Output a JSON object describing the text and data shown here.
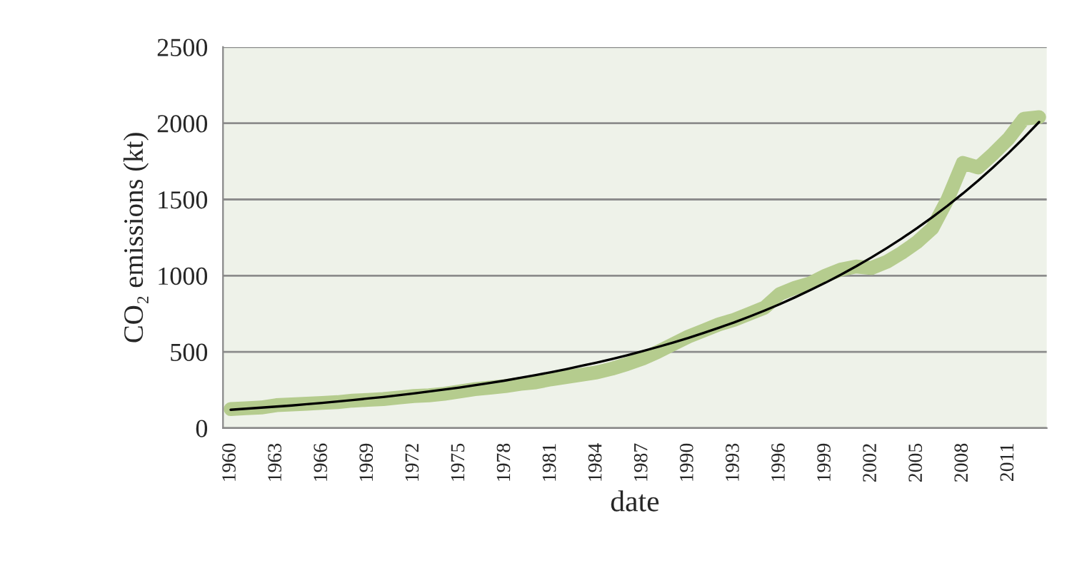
{
  "chart_data": {
    "type": "line",
    "xlabel": "date",
    "ylabel": "CO₂ emissions (kt)",
    "categories": [
      "1960",
      null,
      null,
      "1963",
      null,
      null,
      "1966",
      null,
      null,
      "1969",
      null,
      null,
      "1972",
      null,
      null,
      "1975",
      null,
      null,
      "1978",
      null,
      null,
      "1981",
      null,
      null,
      "1984",
      null,
      null,
      "1987",
      null,
      null,
      "1990",
      null,
      null,
      "1993",
      null,
      null,
      "1996",
      null,
      null,
      "1999",
      null,
      null,
      "2002",
      null,
      null,
      "2005",
      null,
      null,
      "2008",
      null,
      null,
      "2011",
      null,
      null
    ],
    "series": [
      {
        "color": "#b5cc8e",
        "values": [
          125,
          130,
          135,
          150,
          155,
          160,
          165,
          170,
          180,
          185,
          190,
          200,
          210,
          215,
          225,
          240,
          255,
          265,
          275,
          290,
          300,
          320,
          335,
          350,
          365,
          390,
          420,
          455,
          500,
          550,
          600,
          640,
          680,
          710,
          750,
          790,
          880,
          920,
          950,
          1000,
          1040,
          1060,
          1050,
          1090,
          1150,
          1220,
          1310,
          1500,
          1740,
          1710,
          1800,
          1900,
          2030,
          2040
        ]
      },
      {
        "color": "#000000",
        "values": [
          120,
          127,
          134,
          141,
          148,
          157,
          165,
          174,
          184,
          194,
          204,
          215,
          227,
          240,
          253,
          266,
          281,
          296,
          312,
          330,
          348,
          366,
          386,
          408,
          430,
          453,
          478,
          504,
          532,
          561,
          591,
          624,
          658,
          693,
          731,
          771,
          813,
          858,
          905,
          954,
          1006,
          1061,
          1119,
          1180,
          1244,
          1312,
          1384,
          1459,
          1539,
          1623,
          1712,
          1805,
          1904,
          2008
        ]
      }
    ],
    "ylim": [
      0,
      2500
    ],
    "yticks": [
      0,
      500,
      1000,
      1500,
      2000,
      2500
    ],
    "grid": "y"
  }
}
